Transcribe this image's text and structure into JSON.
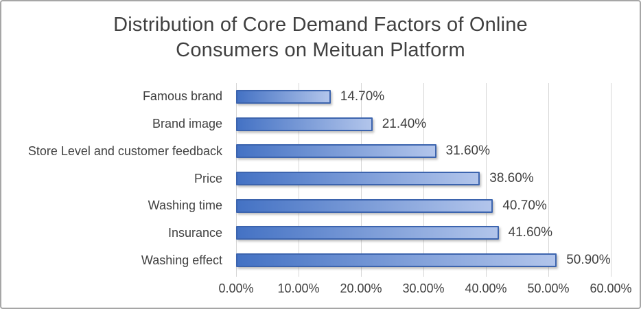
{
  "frame": {
    "background": "#FFFFFF",
    "border_color": "#A6A6A6"
  },
  "chart_data": {
    "type": "bar",
    "orientation": "horizontal",
    "title": "Distribution of Core Demand Factors of Online\nConsumers on Meituan Platform",
    "categories": [
      "Famous brand",
      "Brand image",
      "Store Level and customer feedback",
      "Price",
      "Washing time",
      "Insurance",
      "Washing effect"
    ],
    "values": [
      14.7,
      21.4,
      31.6,
      38.6,
      40.7,
      41.6,
      50.9
    ],
    "data_labels": [
      "14.70%",
      "21.40%",
      "31.60%",
      "38.60%",
      "40.70%",
      "41.60%",
      "50.90%"
    ],
    "xlim": [
      0,
      60
    ],
    "x_tick_labels": [
      "0.00%",
      "10.00%",
      "20.00%",
      "30.00%",
      "40.00%",
      "50.00%",
      "60.00%"
    ],
    "grid": true,
    "legend": "none",
    "xlabel": "",
    "ylabel": "",
    "colors": {
      "bar_gradient_start": "#4472C4",
      "bar_gradient_end": "#B2C5EB",
      "bar_border": "#3C64AE",
      "gridline": "#D6D6D6",
      "text": "#404040"
    }
  }
}
